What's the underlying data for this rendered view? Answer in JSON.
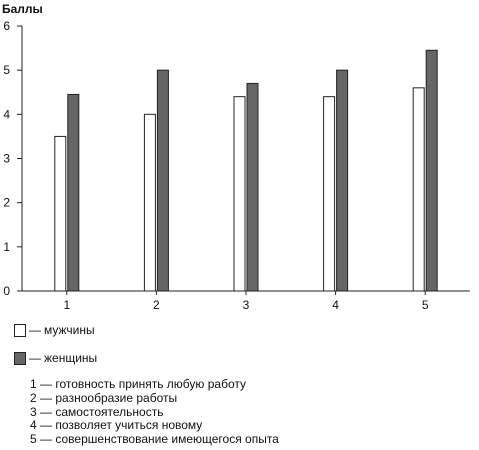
{
  "chart_data": {
    "type": "bar",
    "ylabel": "Баллы",
    "xlabel": "",
    "ylim": [
      0,
      6
    ],
    "yticks": [
      "0",
      "1",
      "2",
      "3",
      "4",
      "5",
      "6"
    ],
    "categories": [
      "1",
      "2",
      "3",
      "4",
      "5"
    ],
    "grid": false,
    "legend_position": "bottom-left",
    "series": [
      {
        "name": "мужчины",
        "color": "#ffffff",
        "values": [
          3.5,
          4.0,
          4.4,
          4.4,
          4.6
        ]
      },
      {
        "name": "женщины",
        "color": "#666666",
        "values": [
          4.45,
          5.0,
          4.7,
          5.0,
          5.45
        ]
      }
    ]
  },
  "legend": {
    "dash": "—",
    "men": "мужчины",
    "women": "женщины"
  },
  "notes": [
    {
      "num": "1",
      "text": "готовность принять любую работу"
    },
    {
      "num": "2",
      "text": "разнообразие работы"
    },
    {
      "num": "3",
      "text": "самостоятельность"
    },
    {
      "num": "4",
      "text": "позволяет учиться новому"
    },
    {
      "num": "5",
      "text": "совершенствование имеющегося опыта"
    }
  ]
}
